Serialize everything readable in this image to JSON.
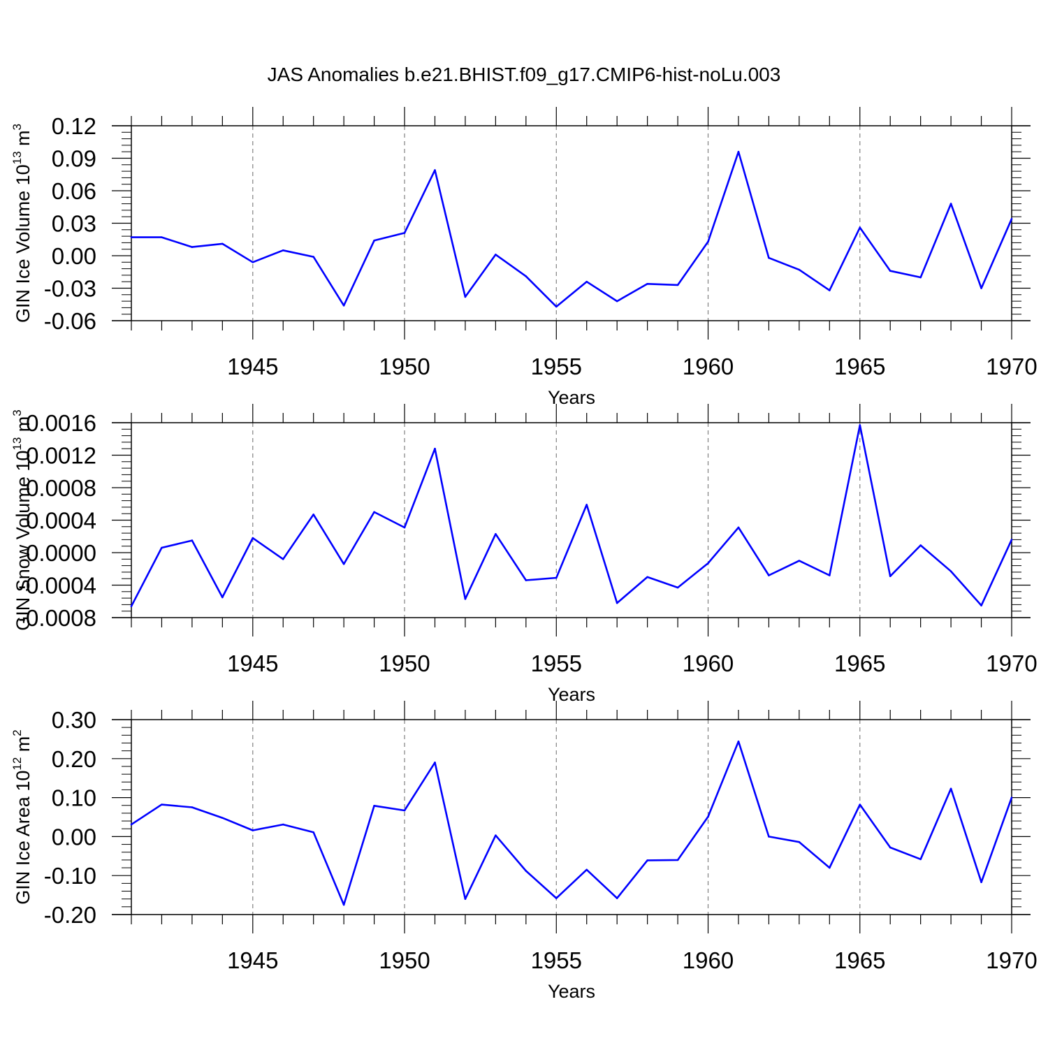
{
  "title": "JAS Anomalies b.e21.BHIST.f09_g17.CMIP6-hist-noLu.003",
  "colors": {
    "line": "#0000ff",
    "axis": "#000000",
    "grid": "#808080"
  },
  "chart_data": [
    {
      "type": "line",
      "name": "ice-volume",
      "ylabel_main": "GIN Ice Volume 10",
      "ylabel_exp": "13",
      "ylabel_unit": " m",
      "ylabel_unit_exp": "3",
      "xlabel": "Years",
      "xlim": [
        1941,
        1970
      ],
      "ylim": [
        -0.06,
        0.12
      ],
      "yticks": [
        -0.06,
        -0.03,
        0.0,
        0.03,
        0.06,
        0.09,
        0.12
      ],
      "ytick_labels": [
        "-0.06",
        "-0.03",
        "0.00",
        "0.03",
        "0.06",
        "0.09",
        "0.12"
      ],
      "xticks": [
        1945,
        1950,
        1955,
        1960,
        1965,
        1970
      ],
      "xtick_labels": [
        "1945",
        "1950",
        "1955",
        "1960",
        "1965",
        "1970"
      ],
      "x": [
        1941,
        1942,
        1943,
        1944,
        1945,
        1946,
        1947,
        1948,
        1949,
        1950,
        1951,
        1952,
        1953,
        1954,
        1955,
        1956,
        1957,
        1958,
        1959,
        1960,
        1961,
        1962,
        1963,
        1964,
        1965,
        1966,
        1967,
        1968,
        1969,
        1970
      ],
      "values": [
        0.017,
        0.017,
        0.008,
        0.011,
        -0.006,
        0.005,
        -0.001,
        -0.046,
        0.014,
        0.021,
        0.079,
        -0.038,
        0.001,
        -0.019,
        -0.047,
        -0.024,
        -0.042,
        -0.026,
        -0.027,
        0.013,
        0.096,
        -0.002,
        -0.013,
        -0.032,
        0.026,
        -0.014,
        -0.02,
        0.048,
        -0.03,
        0.034
      ]
    },
    {
      "type": "line",
      "name": "snow-volume",
      "ylabel_main": "GIN Snow Volume 10",
      "ylabel_exp": "13",
      "ylabel_unit": " m",
      "ylabel_unit_exp": "3",
      "xlabel": "Years",
      "xlim": [
        1941,
        1970
      ],
      "ylim": [
        -0.0008,
        0.0016
      ],
      "yticks": [
        -0.0008,
        -0.0004,
        0.0,
        0.0004,
        0.0008,
        0.0012,
        0.0016
      ],
      "ytick_labels": [
        "-0.0008",
        "-0.0004",
        "0.0000",
        "0.0004",
        "0.0008",
        "0.0012",
        "0.0016"
      ],
      "xticks": [
        1945,
        1950,
        1955,
        1960,
        1965,
        1970
      ],
      "xtick_labels": [
        "1945",
        "1950",
        "1955",
        "1960",
        "1965",
        "1970"
      ],
      "x": [
        1941,
        1942,
        1943,
        1944,
        1945,
        1946,
        1947,
        1948,
        1949,
        1950,
        1951,
        1952,
        1953,
        1954,
        1955,
        1956,
        1957,
        1958,
        1959,
        1960,
        1961,
        1962,
        1963,
        1964,
        1965,
        1966,
        1967,
        1968,
        1969,
        1970
      ],
      "values": [
        -0.00066,
        6e-05,
        0.00015,
        -0.00055,
        0.00018,
        -8e-05,
        0.00047,
        -0.00014,
        0.0005,
        0.00031,
        0.00128,
        -0.00057,
        0.00023,
        -0.00034,
        -0.00031,
        0.00059,
        -0.00062,
        -0.0003,
        -0.00043,
        -0.00013,
        0.00031,
        -0.00028,
        -0.0001,
        -0.00028,
        0.00157,
        -0.00029,
        9e-05,
        -0.00023,
        -0.00065,
        0.00016
      ]
    },
    {
      "type": "line",
      "name": "ice-area",
      "ylabel_main": "GIN Ice Area 10",
      "ylabel_exp": "12",
      "ylabel_unit": " m",
      "ylabel_unit_exp": "2",
      "xlabel": "Years",
      "xlim": [
        1941,
        1970
      ],
      "ylim": [
        -0.2,
        0.3
      ],
      "yticks": [
        -0.2,
        -0.1,
        0.0,
        0.1,
        0.2,
        0.3
      ],
      "ytick_labels": [
        "-0.20",
        "-0.10",
        "0.00",
        "0.10",
        "0.20",
        "0.30"
      ],
      "xticks": [
        1945,
        1950,
        1955,
        1960,
        1965,
        1970
      ],
      "xtick_labels": [
        "1945",
        "1950",
        "1955",
        "1960",
        "1965",
        "1970"
      ],
      "x": [
        1941,
        1942,
        1943,
        1944,
        1945,
        1946,
        1947,
        1948,
        1949,
        1950,
        1951,
        1952,
        1953,
        1954,
        1955,
        1956,
        1957,
        1958,
        1959,
        1960,
        1961,
        1962,
        1963,
        1964,
        1965,
        1966,
        1967,
        1968,
        1969,
        1970
      ],
      "values": [
        0.031,
        0.082,
        0.075,
        0.048,
        0.016,
        0.031,
        0.011,
        -0.175,
        0.079,
        0.067,
        0.19,
        -0.16,
        0.003,
        -0.088,
        -0.158,
        -0.085,
        -0.158,
        -0.061,
        -0.06,
        0.051,
        0.244,
        0.0,
        -0.014,
        -0.08,
        0.082,
        -0.028,
        -0.058,
        0.123,
        -0.117,
        0.1
      ]
    }
  ]
}
